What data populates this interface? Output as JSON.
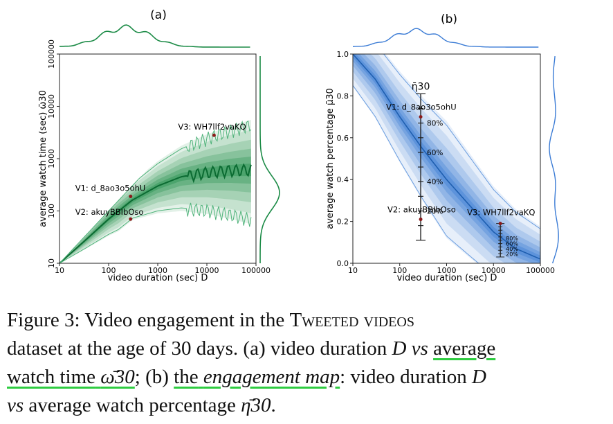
{
  "chart_data": [
    {
      "panel": "(a)",
      "type": "area",
      "xlabel": "video duration (sec) D",
      "ylabel": "average watch time (sec) ω̄30",
      "xscale": "log",
      "yscale": "log",
      "xlim": [
        10,
        100000
      ],
      "ylim": [
        10,
        100000
      ],
      "xticks": [
        "10",
        "100",
        "1000",
        "10000",
        "100000"
      ],
      "yticks": [
        "10",
        "100",
        "1000",
        "10000",
        "100000"
      ],
      "grid": false,
      "color": "#1a8a45",
      "median_curve": {
        "x": [
          10,
          30,
          100,
          300,
          1000,
          3000,
          10000,
          30000,
          80000
        ],
        "y": [
          10,
          25,
          70,
          160,
          300,
          450,
          550,
          600,
          620
        ]
      },
      "annotations": [
        {
          "label": "V1: d_8ao3o5ohU",
          "x": 280,
          "y": 190
        },
        {
          "label": "V2: akuyBBIbOso",
          "x": 280,
          "y": 70
        },
        {
          "label": "V3: WH7llf2vaKQ",
          "x": 14000,
          "y": 2800
        }
      ],
      "marginals": {
        "top": "density of D",
        "right": "density of ω̄30"
      }
    },
    {
      "panel": "(b)",
      "type": "area",
      "xlabel": "video duration (sec) D",
      "ylabel": "average watch percentage μ̄30",
      "xscale": "log",
      "yscale": "linear",
      "xlim": [
        10,
        100000
      ],
      "ylim": [
        0.0,
        1.0
      ],
      "xticks": [
        "10",
        "100",
        "1000",
        "10000",
        "100000"
      ],
      "yticks": [
        "0.0",
        "0.2",
        "0.4",
        "0.6",
        "0.8",
        "1.0"
      ],
      "grid": false,
      "color": "#3a7bd5",
      "median_curve": {
        "x": [
          10,
          30,
          100,
          300,
          1000,
          3000,
          10000,
          30000,
          100000
        ],
        "y": [
          1.0,
          0.88,
          0.7,
          0.55,
          0.4,
          0.28,
          0.15,
          0.07,
          0.02
        ]
      },
      "annotations": [
        {
          "label": "V1: d_8ao3o5ohU",
          "x": 280,
          "y": 0.7
        },
        {
          "label": "V2: akuyBBIbOso",
          "x": 280,
          "y": 0.21
        },
        {
          "label": "V3: WH7llf2vaKQ",
          "x": 14000,
          "y": 0.19
        }
      ],
      "eta_scale_label": "η̄30",
      "eta_scale_ticks": [
        "80%",
        "60%",
        "40%",
        "20%"
      ],
      "small_scale_ticks": [
        "80%",
        "60%",
        "40%",
        "20%"
      ],
      "marginals": {
        "top": "density of D",
        "right": "density of μ̄30"
      }
    }
  ],
  "caption": {
    "figure_label": "Figure 3:",
    "line1_a": "Video engagement in the ",
    "dataset_name": "Tweeted videos",
    "line2_a": "dataset at the age of 30 days. (a) video duration ",
    "D": "D",
    "vs": "vs",
    "average": "average",
    "watch_time": "watch time",
    "omega": "ω̄30",
    "line3_b": "; (b) ",
    "the": "the",
    "engagement_map": "engagement map",
    "line3_c": ": video duration ",
    "line4_b": " average watch percentage ",
    "eta": "η̄30",
    "line4_end": "."
  }
}
